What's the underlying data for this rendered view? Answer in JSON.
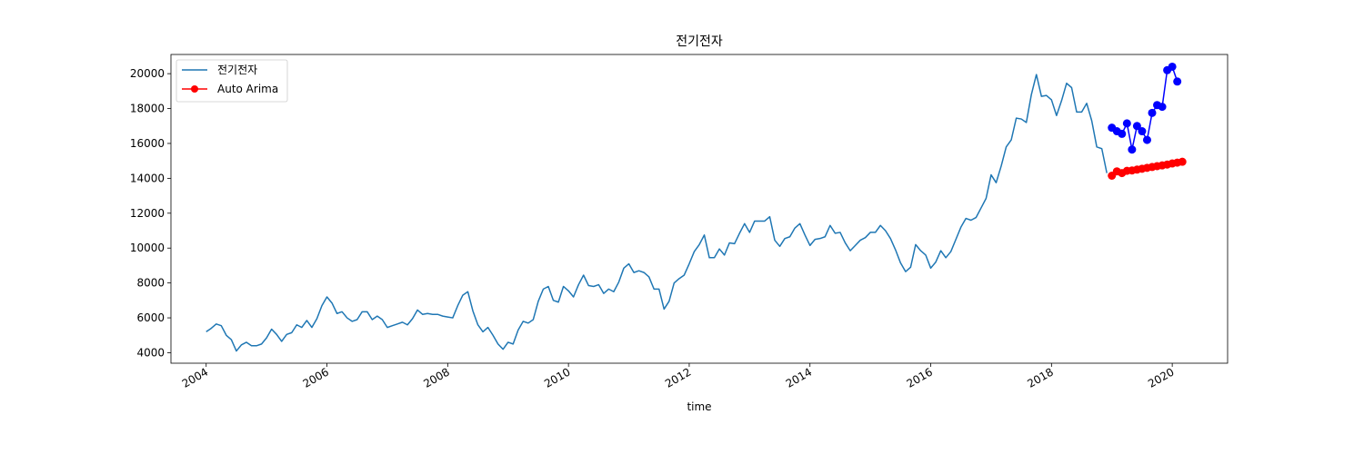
{
  "chart_data": {
    "type": "line",
    "title": "전기전자",
    "xlabel": "time",
    "ylabel": "",
    "xlim": [
      "2003-06-01",
      "2020-12-01"
    ],
    "ylim": [
      3400,
      21100
    ],
    "x_ticks": [
      "2004",
      "2006",
      "2008",
      "2010",
      "2012",
      "2014",
      "2016",
      "2018",
      "2020"
    ],
    "y_ticks": [
      4000,
      6000,
      8000,
      10000,
      12000,
      14000,
      16000,
      18000,
      20000
    ],
    "y_tick_labels": [
      "4000",
      "6000",
      "8000",
      "10000",
      "12000",
      "14000",
      "16000",
      "18000",
      "20000"
    ],
    "legend": {
      "position": "top-left",
      "entries": [
        "전기전자",
        "Auto Arima"
      ]
    },
    "colors": {
      "actual": "#1f77b4",
      "forecast": "#ff0000",
      "test": "#0000ff"
    },
    "series": [
      {
        "name": "전기전자",
        "start": "2004-01",
        "frequency": "monthly",
        "values": [
          5200,
          5400,
          5650,
          5550,
          5000,
          4750,
          4100,
          4450,
          4600,
          4400,
          4400,
          4500,
          4850,
          5350,
          5050,
          4650,
          5050,
          5150,
          5600,
          5450,
          5850,
          5450,
          5950,
          6700,
          7200,
          6850,
          6250,
          6350,
          6000,
          5800,
          5900,
          6350,
          6350,
          5900,
          6100,
          5900,
          5450,
          5550,
          5650,
          5750,
          5600,
          5950,
          6450,
          6200,
          6250,
          6200,
          6200,
          6100,
          6050,
          6000,
          6700,
          7300,
          7500,
          6400,
          5600,
          5200,
          5450,
          5000,
          4500,
          4200,
          4600,
          4500,
          5300,
          5800,
          5700,
          5900,
          6950,
          7650,
          7800,
          7000,
          6900,
          7800,
          7550,
          7200,
          7900,
          8450,
          7850,
          7800,
          7900,
          7400,
          7650,
          7500,
          8050,
          8850,
          9100,
          8600,
          8700,
          8600,
          8350,
          7650,
          7650,
          6500,
          6950,
          8000,
          8250,
          8450,
          9100,
          9800,
          10200,
          10750,
          9450,
          9450,
          9950,
          9600,
          10300,
          10250,
          10850,
          11400,
          10900,
          11550,
          11550,
          11550,
          11800,
          10450,
          10100,
          10550,
          10650,
          11150,
          11400,
          10750,
          10150,
          10500,
          10550,
          10650,
          11300,
          10850,
          10900,
          10300,
          9850,
          10150,
          10450,
          10600,
          10900,
          10900,
          11300,
          11000,
          10550,
          9900,
          9150,
          8650,
          8900,
          10200,
          9850,
          9600,
          8850,
          9200,
          9850,
          9450,
          9800,
          10500,
          11200,
          11700,
          11600,
          11750,
          12300,
          12850,
          14200,
          13750,
          14700,
          15800,
          16200,
          17450,
          17400,
          17200,
          18800,
          19950,
          18700,
          18750,
          18500,
          17600,
          18450,
          19450,
          19200,
          17800,
          17800,
          18300,
          17300,
          15800,
          15700,
          14300
        ]
      },
      {
        "name": "Auto Arima",
        "start": "2019-01",
        "frequency": "monthly",
        "values": [
          14150,
          14400,
          14300,
          14430,
          14450,
          14500,
          14550,
          14600,
          14650,
          14700,
          14740,
          14790,
          14850,
          14900,
          14950
        ]
      },
      {
        "start": "2019-01",
        "frequency": "monthly",
        "values": [
          16900,
          16700,
          16550,
          17150,
          15650,
          17000,
          16700,
          16200,
          17750,
          18200,
          18100,
          20200,
          20400,
          19550
        ]
      }
    ]
  }
}
